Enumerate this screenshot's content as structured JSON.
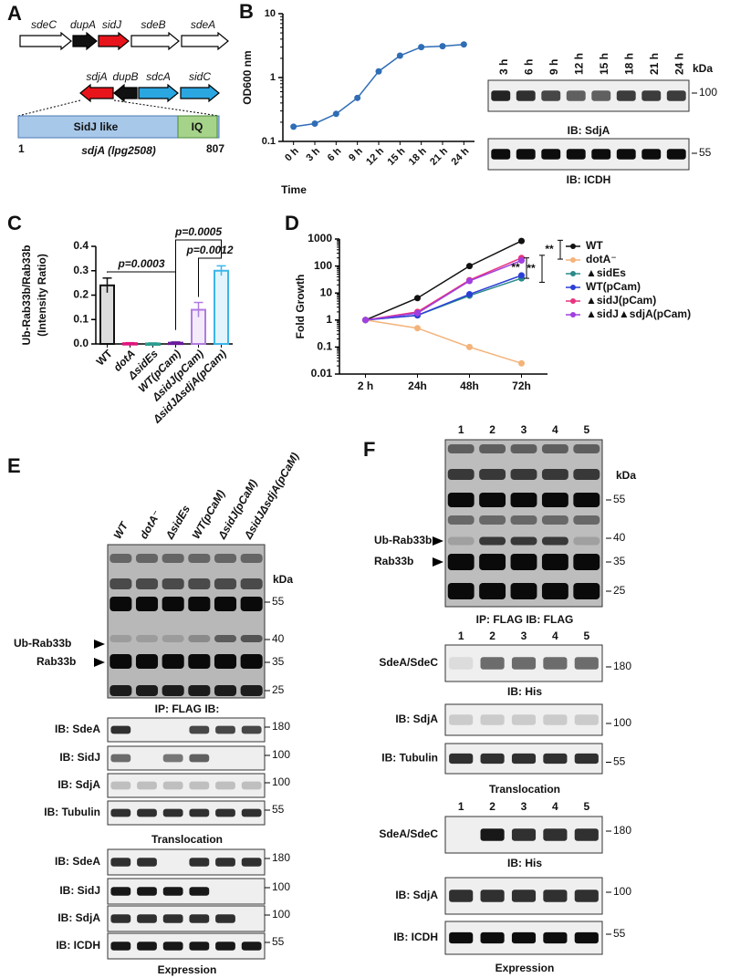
{
  "panel_labels": [
    "A",
    "B",
    "C",
    "D",
    "E",
    "F"
  ],
  "panel_a": {
    "genes_top": [
      "sdeC",
      "dupA",
      "sidJ",
      "sdeB",
      "sdeA"
    ],
    "genes_bottom": [
      "sdjA",
      "dupB",
      "sdcA",
      "sidC"
    ],
    "domains": [
      "SidJ like",
      "IQ"
    ],
    "start": "1",
    "end": "807",
    "gene_name": "sdjA (lpg2508)"
  },
  "blot_b": {
    "lanes": [
      "3 h",
      "6 h",
      "9 h",
      "12 h",
      "15 h",
      "18 h",
      "21 h",
      "24 h"
    ],
    "unit": "kDa",
    "strips": [
      {
        "marker": 100,
        "caption": "IB: SdjA"
      },
      {
        "marker": 55,
        "caption": "IB: ICDH"
      }
    ]
  },
  "blot_e": {
    "lanes": [
      "WT",
      "dotA⁻",
      "ΔsidEs",
      "WT(pCaM)",
      "ΔsidJ(pCaM)",
      "ΔsidJΔsdjA(pCaM)"
    ],
    "unit": "kDa",
    "markers": [
      55,
      40,
      35,
      25
    ],
    "band_labels": [
      "Ub-Rab33b",
      "Rab33b"
    ],
    "ip_caption": "IP: FLAG  IB:",
    "ip_strips": [
      {
        "label": "IB: SdeA",
        "marker": 180
      },
      {
        "label": "IB: SidJ",
        "marker": 100
      },
      {
        "label": "IB: SdjA",
        "marker": 100
      },
      {
        "label": "IB: Tubulin",
        "marker": 55
      }
    ],
    "ip_section": "Translocation",
    "expr_strips": [
      {
        "label": "IB: SdeA",
        "marker": 180
      },
      {
        "label": "IB: SidJ",
        "marker": 100
      },
      {
        "label": "IB: SdjA",
        "marker": 100
      },
      {
        "label": "IB: ICDH",
        "marker": 55
      }
    ],
    "expr_section": "Expression"
  },
  "blot_f": {
    "lanes": [
      "1",
      "2",
      "3",
      "4",
      "5"
    ],
    "unit": "kDa",
    "markers": [
      55,
      40,
      35,
      25
    ],
    "band_labels": [
      "Ub-Rab33b",
      "Rab33b"
    ],
    "ip_caption": "IP: FLAG  IB: FLAG",
    "ip_strips": [
      {
        "label": "SdeA/SdeC",
        "marker": 180,
        "caption": "IB: His"
      },
      {
        "label": "IB: SdjA",
        "marker": 100
      },
      {
        "label": "IB: Tubulin",
        "marker": 55
      }
    ],
    "ip_section": "Translocation",
    "expr_strips": [
      {
        "label": "SdeA/SdeC",
        "marker": 180,
        "caption": "IB: His"
      },
      {
        "label": "IB: SdjA",
        "marker": 100
      },
      {
        "label": "IB: ICDH",
        "marker": 55
      }
    ],
    "expr_section": "Expression"
  },
  "chart_data": [
    {
      "type": "line",
      "ylabel": "OD600 nm",
      "xlabel": "Time",
      "log": true,
      "categories": [
        "0 h",
        "3 h",
        "6 h",
        "9 h",
        "12 h",
        "15 h",
        "18 h",
        "21 h",
        "24 h"
      ],
      "values": [
        0.17,
        0.19,
        0.27,
        0.48,
        1.25,
        2.2,
        3.0,
        3.1,
        3.3
      ],
      "color": "#2f6db5",
      "ylim": [
        0.1,
        10
      ],
      "yticks": [
        0.1,
        1,
        10
      ]
    },
    {
      "type": "bar",
      "ylabel": [
        "Ub-Rab33b/Rab33b",
        "(Intensity Ratio)"
      ],
      "categories": [
        "WT",
        "dotA",
        "ΔsidEs",
        "WT(pCam)",
        "ΔsidJ(pCam)",
        "ΔsidJΔsdjA(pCam)"
      ],
      "values": [
        0.24,
        0.003,
        0.002,
        0.005,
        0.14,
        0.3
      ],
      "errors": [
        0.03,
        0.002,
        0.002,
        0.003,
        0.03,
        0.02
      ],
      "colors": [
        "#111111",
        "#e0157f",
        "#2a9d8f",
        "#6a1b9a",
        "#b07be0",
        "#3cb6e8"
      ],
      "ylim": [
        0,
        0.4
      ],
      "yticks": [
        {
          "value": 0,
          "label": "0.0"
        },
        0.1,
        0.2,
        0.3,
        0.4
      ],
      "annotations": [
        "p=0.0003",
        "p=0.0005",
        "p=0.0012"
      ]
    },
    {
      "type": "line",
      "ylabel": "Fold Growth",
      "log": true,
      "legend": "right",
      "categories": [
        "2 h",
        "24h",
        "48h",
        "72h"
      ],
      "series": [
        {
          "name": "WT",
          "color": "#111111",
          "values": [
            1,
            6.5,
            100,
            850
          ]
        },
        {
          "name": "dotA⁻",
          "color": "#f4b37a",
          "values": [
            1,
            0.5,
            0.1,
            0.025
          ]
        },
        {
          "name": "▲sidEs",
          "color": "#2a8a8a",
          "values": [
            1,
            1.5,
            8,
            35
          ]
        },
        {
          "name": "WT(pCam)",
          "color": "#2b3fd6",
          "values": [
            1,
            1.5,
            9,
            45
          ]
        },
        {
          "name": "▲sidJ(pCam)",
          "color": "#e8337e",
          "values": [
            1,
            2,
            30,
            200
          ]
        },
        {
          "name": "▲sidJ▲sdjA(pCam)",
          "color": "#a040e0",
          "values": [
            1,
            1.8,
            28,
            160
          ]
        }
      ],
      "ylim": [
        0.01,
        1000
      ],
      "yticks": [
        0.01,
        0.1,
        1,
        10,
        100,
        1000
      ],
      "annotations": [
        "**",
        "**",
        "**"
      ]
    }
  ]
}
